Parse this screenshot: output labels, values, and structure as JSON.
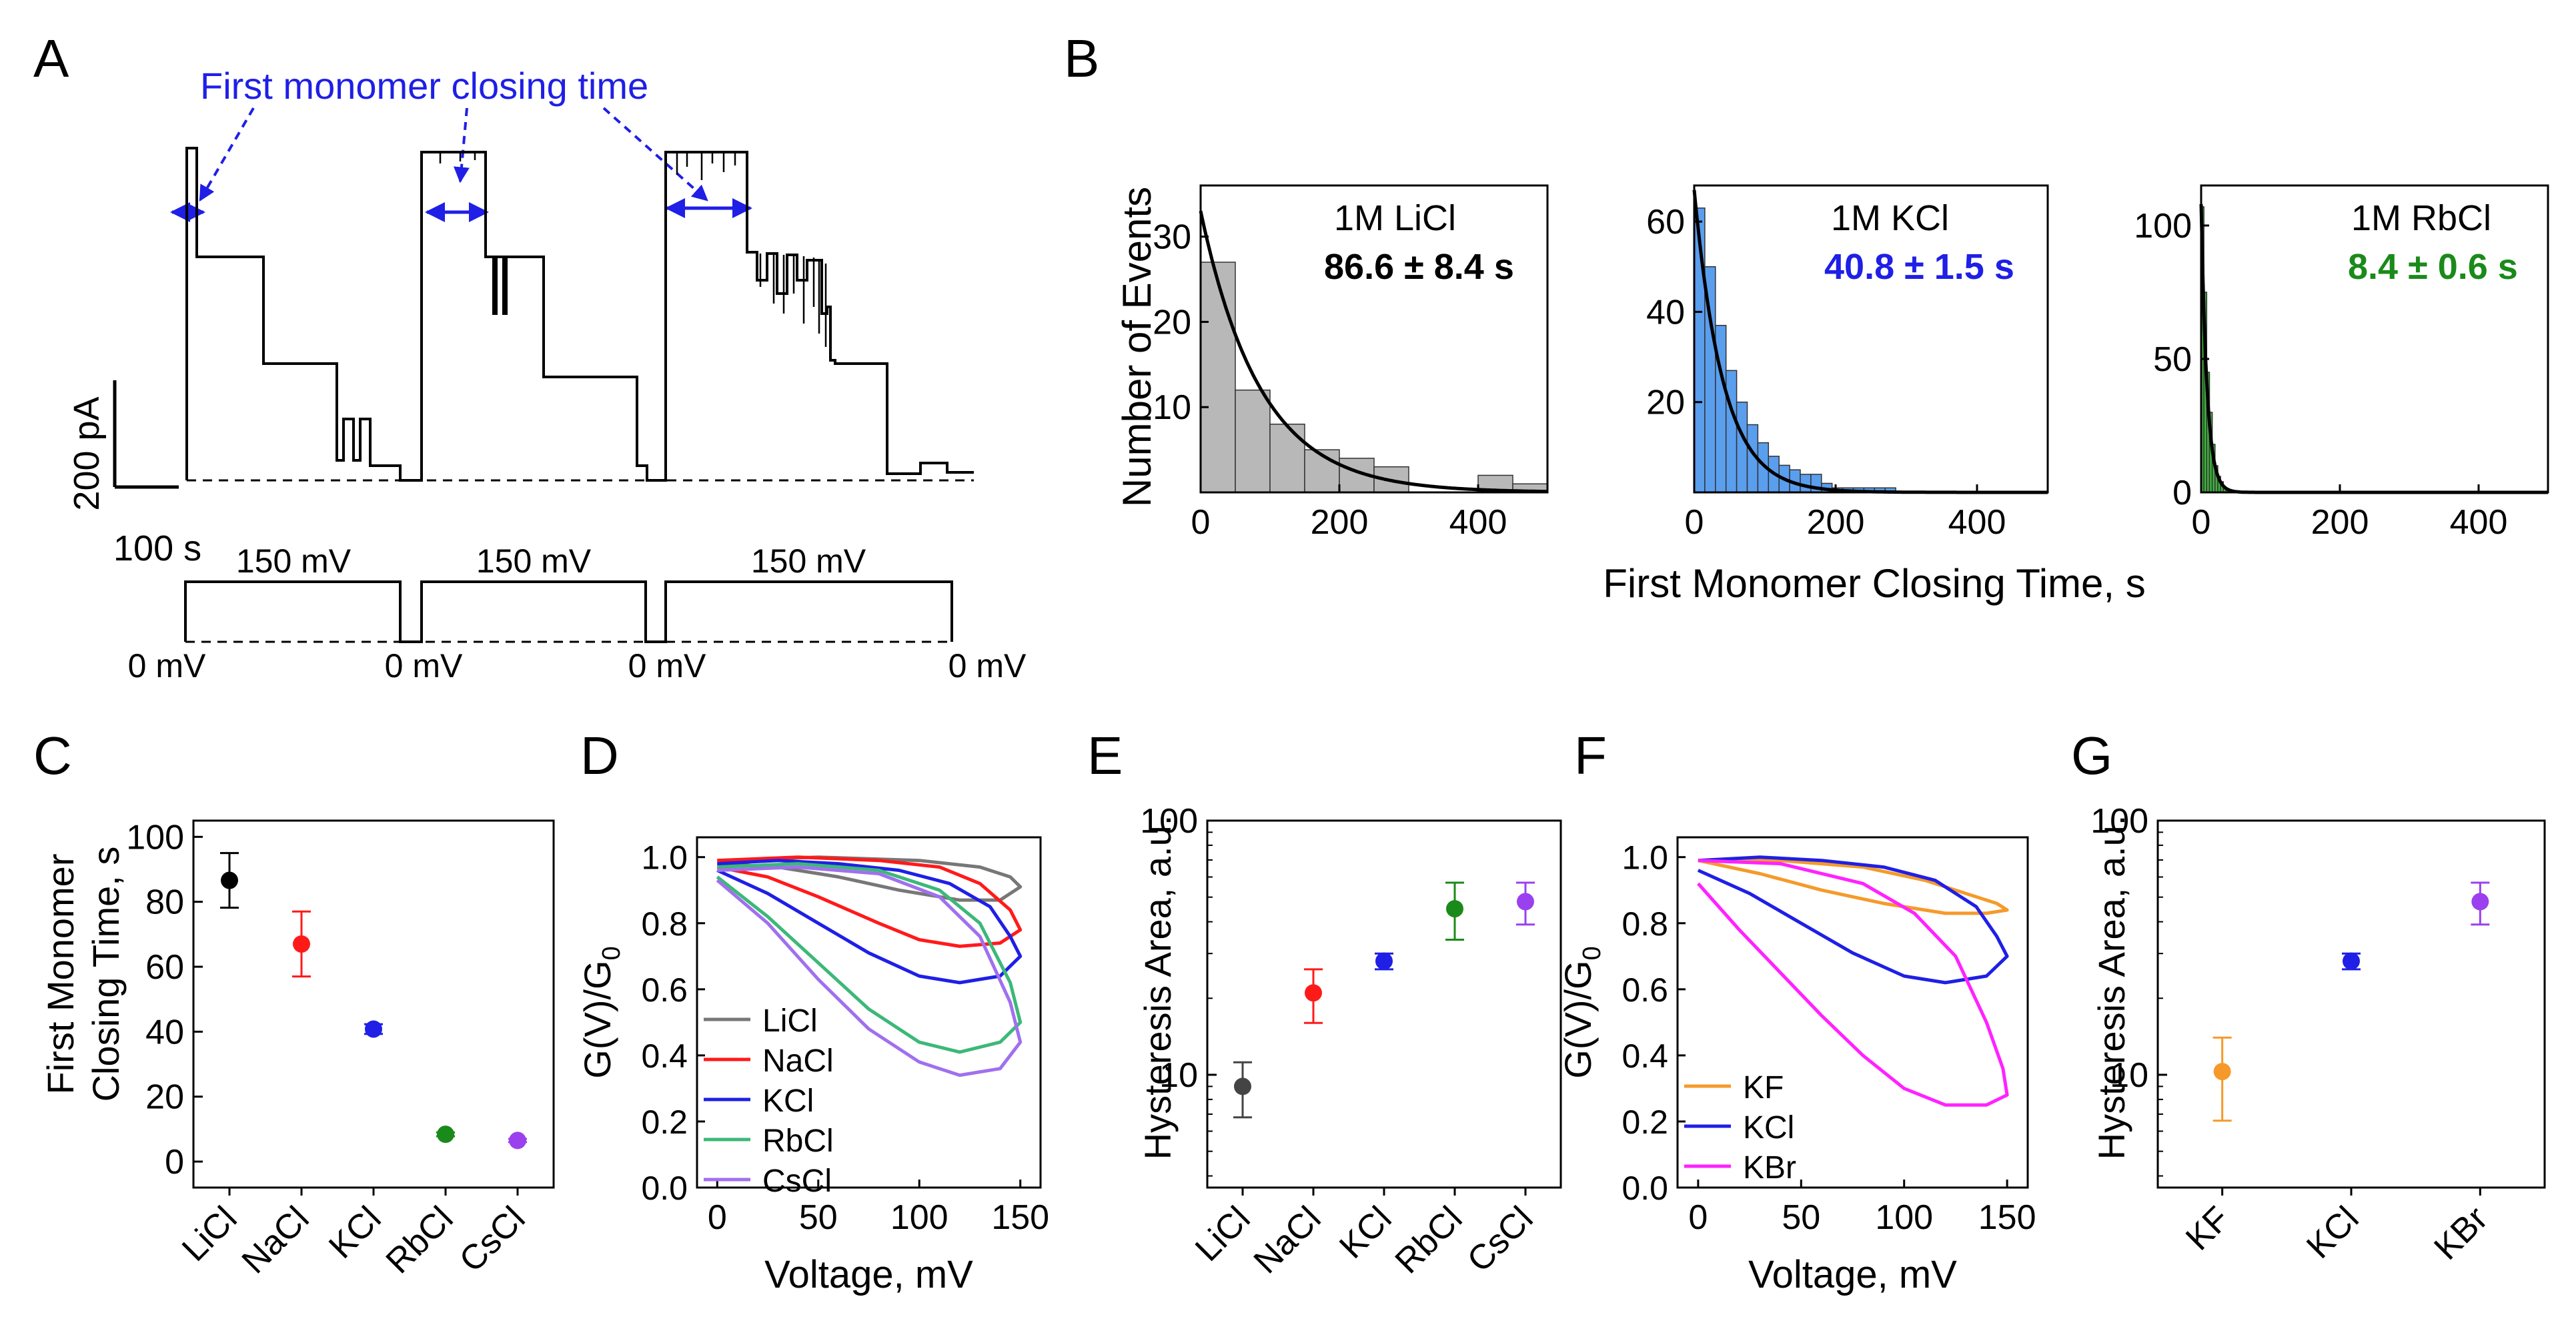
{
  "figure": {
    "panel_labels": [
      "A",
      "B",
      "C",
      "D",
      "E",
      "F",
      "G"
    ],
    "colors": {
      "black": "#000000",
      "blue": "#1f1fe6",
      "bright_blue": "#0000ff",
      "red": "#ff1a1a",
      "green": "#1a8a1a",
      "purple": "#9a40ee",
      "gray": "#444444",
      "orange": "#f59a2a",
      "magenta": "#ff22ff",
      "hist_gray": "#b8b8b8",
      "hist_blue": "#5a9eee",
      "hist_green": "#3cb43c",
      "lightgreen": "#3cb878",
      "lightpurple": "#a070ee",
      "darkgray": "#777777"
    }
  },
  "panel_a": {
    "annotation": "First monomer closing time",
    "scalebar_current": "200 pA",
    "scalebar_time": "100 s",
    "voltage_labels": [
      "150 mV",
      "150 mV",
      "150 mV"
    ],
    "zero_labels": [
      "0 mV",
      "0 mV",
      "0 mV",
      "0 mV"
    ]
  },
  "panel_b": {
    "ylabel": "Number of Events",
    "xlabel": "First Monomer Closing Time, s"
  },
  "chart_data": [
    {
      "id": "B1",
      "type": "bar",
      "title": "1M LiCl",
      "annotation": "86.6 ± 8.4 s",
      "bin_width": 50,
      "bin_starts": [
        0,
        50,
        100,
        150,
        200,
        250,
        300,
        350,
        400,
        450
      ],
      "values": [
        27,
        12,
        8,
        5,
        4,
        3,
        0,
        0,
        2,
        1
      ],
      "fit": {
        "type": "exponential",
        "amplitude": 33,
        "tau": 86.6
      },
      "xlim": [
        0,
        500
      ],
      "ylim": [
        0,
        36
      ],
      "xticks": [
        0,
        200,
        400
      ],
      "yticks": [
        10,
        20,
        30
      ]
    },
    {
      "id": "B2",
      "type": "bar",
      "title": "1M KCl",
      "annotation": "40.8 ± 1.5 s",
      "bin_width": 15,
      "bin_starts": [
        0,
        15,
        30,
        45,
        60,
        75,
        90,
        105,
        120,
        135,
        150,
        165,
        180,
        195,
        210,
        225,
        240,
        255,
        270
      ],
      "values": [
        63,
        50,
        37,
        27,
        20,
        15,
        11,
        8,
        6,
        5,
        4,
        4,
        2,
        1,
        1,
        1,
        1,
        1,
        1
      ],
      "fit": {
        "type": "exponential",
        "amplitude": 67,
        "tau": 40.8
      },
      "xlim": [
        0,
        500
      ],
      "ylim": [
        0,
        68
      ],
      "xticks": [
        0,
        200,
        400
      ],
      "yticks": [
        20,
        40,
        60
      ]
    },
    {
      "id": "B3",
      "type": "bar",
      "title": "1M RbCl",
      "annotation": "8.4 ± 0.6 s",
      "bin_width": 4,
      "bin_starts": [
        0,
        4,
        8,
        12,
        16,
        20,
        24,
        28,
        32,
        36
      ],
      "values": [
        107,
        75,
        45,
        30,
        18,
        10,
        6,
        4,
        2,
        1
      ],
      "fit": {
        "type": "exponential",
        "amplitude": 108,
        "tau": 8.4
      },
      "xlim": [
        0,
        500
      ],
      "ylim": [
        0,
        115
      ],
      "xticks": [
        0,
        200,
        400
      ],
      "yticks": [
        0,
        50,
        100
      ]
    },
    {
      "id": "C",
      "type": "scatter",
      "ylabel": [
        "First Monomer",
        "Closing Time, s"
      ],
      "categories": [
        "LiCl",
        "NaCl",
        "KCl",
        "RbCl",
        "CsCl"
      ],
      "values": [
        86.6,
        67,
        40.8,
        8.4,
        6.5
      ],
      "errors": [
        8.4,
        10,
        1.5,
        0.6,
        0.5
      ],
      "colors": [
        "#000000",
        "#ff1a1a",
        "#1f1fe6",
        "#1a8a1a",
        "#9a40ee"
      ],
      "ylim": [
        -8,
        105
      ],
      "yticks": [
        0,
        20,
        40,
        60,
        80,
        100
      ]
    },
    {
      "id": "D",
      "type": "line",
      "xlabel": "Voltage, mV",
      "ylabel": "G(V)/G",
      "ylabel_sub": "0",
      "xlim": [
        -10,
        160
      ],
      "ylim": [
        0,
        1.06
      ],
      "xticks": [
        0,
        50,
        100,
        150
      ],
      "yticks": [
        0.0,
        0.2,
        0.4,
        0.6,
        0.8,
        1.0
      ],
      "series": [
        {
          "name": "LiCl",
          "color": "#777777",
          "up_x": [
            0,
            50,
            100,
            130,
            145,
            150
          ],
          "up_y": [
            0.99,
            1.0,
            0.99,
            0.97,
            0.94,
            0.91
          ],
          "down_x": [
            150,
            140,
            120,
            90,
            60,
            30,
            0
          ],
          "down_y": [
            0.91,
            0.87,
            0.87,
            0.9,
            0.94,
            0.97,
            0.98
          ]
        },
        {
          "name": "NaCl",
          "color": "#ff1a1a",
          "up_x": [
            0,
            40,
            80,
            110,
            130,
            145,
            150
          ],
          "up_y": [
            0.99,
            1.0,
            0.99,
            0.97,
            0.92,
            0.84,
            0.78
          ],
          "down_x": [
            150,
            140,
            120,
            100,
            80,
            50,
            25,
            0
          ],
          "down_y": [
            0.78,
            0.74,
            0.73,
            0.75,
            0.8,
            0.88,
            0.94,
            0.97
          ]
        },
        {
          "name": "KCl",
          "color": "#1f1fe6",
          "up_x": [
            0,
            30,
            60,
            90,
            115,
            135,
            145,
            150
          ],
          "up_y": [
            0.98,
            0.99,
            0.98,
            0.96,
            0.92,
            0.85,
            0.76,
            0.7
          ],
          "down_x": [
            150,
            140,
            120,
            100,
            75,
            50,
            25,
            0
          ],
          "down_y": [
            0.7,
            0.64,
            0.62,
            0.64,
            0.71,
            0.8,
            0.89,
            0.96
          ]
        },
        {
          "name": "RbCl",
          "color": "#3cb878",
          "up_x": [
            0,
            40,
            80,
            110,
            130,
            145,
            150
          ],
          "up_y": [
            0.97,
            0.98,
            0.96,
            0.9,
            0.8,
            0.62,
            0.5
          ],
          "down_x": [
            150,
            140,
            120,
            100,
            75,
            50,
            25,
            0
          ],
          "down_y": [
            0.5,
            0.44,
            0.41,
            0.44,
            0.54,
            0.68,
            0.82,
            0.94
          ]
        },
        {
          "name": "CsCl",
          "color": "#a070ee",
          "up_x": [
            0,
            40,
            80,
            110,
            130,
            145,
            150
          ],
          "up_y": [
            0.96,
            0.97,
            0.95,
            0.88,
            0.76,
            0.56,
            0.44
          ],
          "down_x": [
            150,
            140,
            120,
            100,
            75,
            50,
            25,
            0
          ],
          "down_y": [
            0.44,
            0.36,
            0.34,
            0.38,
            0.48,
            0.63,
            0.8,
            0.93
          ]
        }
      ]
    },
    {
      "id": "E",
      "type": "scatter",
      "yscale": "log",
      "ylabel": "Hysteresis Area, a.u.",
      "categories": [
        "LiCl",
        "NaCl",
        "KCl",
        "RbCl",
        "CsCl"
      ],
      "values": [
        9,
        21,
        28,
        45,
        48
      ],
      "err_low": [
        6.8,
        16,
        26,
        34,
        39
      ],
      "err_high": [
        11.2,
        26,
        30,
        57,
        57
      ],
      "colors": [
        "#444444",
        "#ff1a1a",
        "#1f1fe6",
        "#1a8a1a",
        "#9a40ee"
      ],
      "ylim": [
        3.6,
        100
      ],
      "yticks": [
        10,
        100
      ]
    },
    {
      "id": "F",
      "type": "line",
      "xlabel": "Voltage, mV",
      "ylabel": "G(V)/G",
      "ylabel_sub": "0",
      "xlim": [
        -10,
        160
      ],
      "ylim": [
        0,
        1.06
      ],
      "xticks": [
        0,
        50,
        100,
        150
      ],
      "yticks": [
        0.0,
        0.2,
        0.4,
        0.6,
        0.8,
        1.0
      ],
      "series": [
        {
          "name": "KF",
          "color": "#f59a2a",
          "up_x": [
            0,
            40,
            80,
            110,
            130,
            145,
            150
          ],
          "up_y": [
            0.99,
            0.99,
            0.97,
            0.93,
            0.89,
            0.86,
            0.84
          ],
          "down_x": [
            150,
            140,
            120,
            90,
            60,
            30,
            0
          ],
          "down_y": [
            0.84,
            0.83,
            0.83,
            0.86,
            0.9,
            0.95,
            0.99
          ]
        },
        {
          "name": "KCl",
          "color": "#1f1fe6",
          "up_x": [
            0,
            30,
            60,
            90,
            115,
            135,
            145,
            150
          ],
          "up_y": [
            0.99,
            1.0,
            0.99,
            0.97,
            0.93,
            0.85,
            0.76,
            0.7
          ],
          "down_x": [
            150,
            140,
            120,
            100,
            75,
            50,
            25,
            0
          ],
          "down_y": [
            0.7,
            0.64,
            0.62,
            0.64,
            0.71,
            0.8,
            0.89,
            0.96
          ]
        },
        {
          "name": "KBr",
          "color": "#ff22ff",
          "up_x": [
            0,
            40,
            80,
            105,
            125,
            140,
            148,
            150
          ],
          "up_y": [
            0.99,
            0.98,
            0.92,
            0.83,
            0.7,
            0.5,
            0.36,
            0.28
          ],
          "down_x": [
            150,
            140,
            120,
            100,
            80,
            60,
            40,
            20,
            0
          ],
          "down_y": [
            0.28,
            0.25,
            0.25,
            0.3,
            0.4,
            0.52,
            0.65,
            0.78,
            0.92
          ]
        }
      ]
    },
    {
      "id": "G",
      "type": "scatter",
      "yscale": "log",
      "ylabel": "Hysteresis Area, a.u.",
      "categories": [
        "KF",
        "KCl",
        "KBr"
      ],
      "values": [
        10.3,
        28,
        48
      ],
      "err_low": [
        6.6,
        26,
        39
      ],
      "err_high": [
        14,
        30,
        57
      ],
      "colors": [
        "#f59a2a",
        "#1f1fe6",
        "#9a40ee"
      ],
      "ylim": [
        3.6,
        100
      ],
      "yticks": [
        10,
        100
      ]
    }
  ]
}
